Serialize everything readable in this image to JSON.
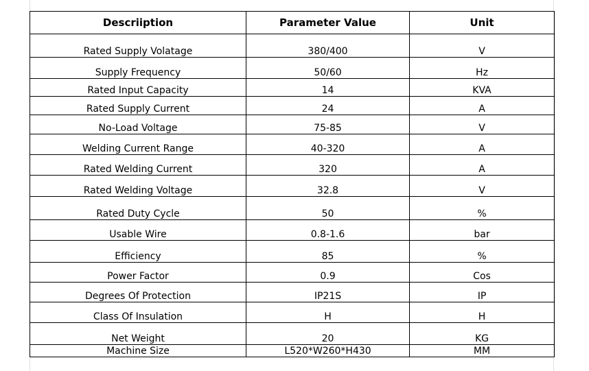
{
  "table": {
    "headers": [
      "Descriiption",
      "Parameter Value",
      "Unit"
    ],
    "rows": [
      [
        "Rated Supply Volatage",
        "380/400",
        "V"
      ],
      [
        "Supply Frequency",
        "50/60",
        "Hz"
      ],
      [
        "Rated Input Capacity",
        "14",
        "KVA"
      ],
      [
        "Rated Supply Current",
        "24",
        "A"
      ],
      [
        "No-Load Voltage",
        "75-85",
        "V"
      ],
      [
        "Welding Current Range",
        "40-320",
        "A"
      ],
      [
        "Rated Welding Current",
        "320",
        "A"
      ],
      [
        "Rated Welding Voltage",
        "32.8",
        "V"
      ],
      [
        "Rated Duty Cycle",
        "50",
        "%"
      ],
      [
        "Usable Wire",
        "0.8-1.6",
        "bar"
      ],
      [
        "Efficiency",
        "85",
        "%"
      ],
      [
        "Power Factor",
        "0.9",
        "Cos"
      ],
      [
        "Degrees Of Protection",
        "IP21S",
        "IP"
      ],
      [
        "Class Of Insulation",
        "H",
        "H"
      ],
      [
        "Net Weight",
        "20",
        "KG"
      ],
      [
        "Machine Size",
        "L520*W260*H430",
        "MM"
      ]
    ]
  }
}
